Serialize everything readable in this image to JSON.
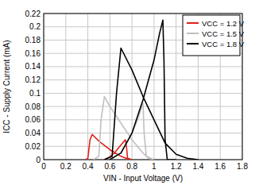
{
  "chart_data": {
    "type": "line",
    "x_label": "VIN - Input Voltage (V)",
    "y_label": "ICC - Supply Current (mA)",
    "xlim": [
      0,
      1.8
    ],
    "xticks": [
      0,
      0.2,
      0.4,
      0.6,
      0.8,
      1,
      1.2,
      1.4,
      1.6,
      1.8
    ],
    "ylim": [
      0,
      0.22
    ],
    "yticks": [
      0,
      0.02,
      0.04,
      0.06,
      0.08,
      0.1,
      0.12,
      0.14,
      0.16,
      0.18,
      0.2,
      0.22
    ],
    "grid": true,
    "legend": "top-right",
    "series": [
      {
        "name": "VCC = 1.2 V",
        "color": "#e0201b",
        "x": [
          0.38,
          0.4,
          0.42,
          0.44,
          0.5,
          0.6,
          0.7,
          0.78,
          null,
          0.55,
          0.6,
          0.65,
          0.7,
          0.74,
          0.75,
          0.76,
          0.8
        ],
        "values": [
          0,
          0.002,
          0.03,
          0.038,
          0.028,
          0.015,
          0.005,
          0,
          null,
          0,
          0.004,
          0.012,
          0.022,
          0.03,
          0.02,
          0.002,
          0
        ]
      },
      {
        "name": "VCC = 1.5 V",
        "color": "#c0c0c0",
        "x": [
          0.45,
          0.5,
          0.52,
          0.55,
          0.6,
          0.7,
          0.8,
          0.9,
          0.95,
          1.0,
          null,
          0.6,
          0.7,
          0.8,
          0.85,
          0.9,
          0.91,
          0.93,
          1.0
        ],
        "values": [
          0,
          0.005,
          0.06,
          0.095,
          0.08,
          0.055,
          0.03,
          0.01,
          0.002,
          0,
          null,
          0,
          0.01,
          0.04,
          0.06,
          0.085,
          0.04,
          0.005,
          0
        ]
      },
      {
        "name": "VCC = 1.8 V",
        "color": "#000000",
        "x": [
          0.55,
          0.62,
          0.66,
          0.7,
          0.8,
          0.9,
          1.0,
          1.1,
          1.2,
          1.3,
          1.4,
          null,
          0.6,
          0.7,
          0.8,
          0.9,
          1.0,
          1.05,
          1.08,
          1.09,
          1.1,
          1.12,
          1.2
        ],
        "values": [
          0,
          0.005,
          0.1,
          0.168,
          0.135,
          0.095,
          0.06,
          0.025,
          0.008,
          0.002,
          0,
          null,
          0,
          0.01,
          0.04,
          0.09,
          0.15,
          0.19,
          0.21,
          0.15,
          0.03,
          0,
          0
        ]
      }
    ]
  }
}
